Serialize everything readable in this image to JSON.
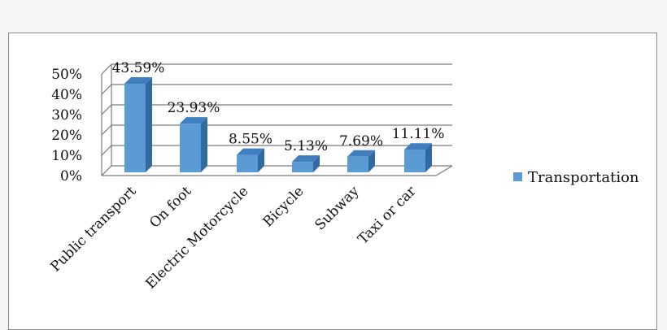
{
  "chart_data": {
    "type": "bar",
    "categories": [
      "Public transport",
      "On foot",
      "Electric Motorcycle",
      "Bicycle",
      "Subway",
      "Taxi or car"
    ],
    "series": [
      {
        "name": "Transportation",
        "values": [
          43.59,
          23.93,
          8.55,
          5.13,
          7.69,
          11.11
        ]
      }
    ],
    "data_labels": [
      "43.59%",
      "23.93%",
      "8.55%",
      "5.13%",
      "7.69%",
      "11.11%"
    ],
    "y_ticks": [
      "0%",
      "10%",
      "20%",
      "30%",
      "40%",
      "50%"
    ],
    "ylim": [
      0,
      50
    ],
    "title": "",
    "xlabel": "",
    "ylabel": "",
    "legend_position": "right",
    "grid": true,
    "bar_color": "#5b9bd5",
    "bar_side_color": "#2f6aa0",
    "bar_top_color": "#3f7fbf",
    "style": "3d-column"
  }
}
